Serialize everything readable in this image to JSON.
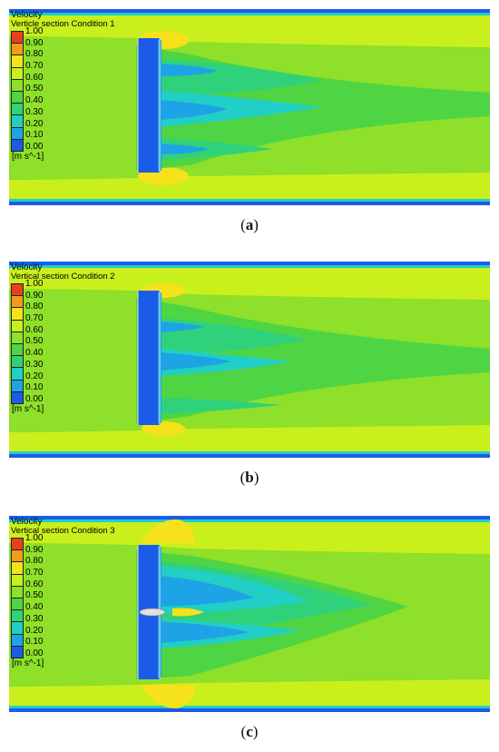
{
  "legend": {
    "title": "Velocity",
    "unit": "[m s^-1]",
    "ticks": [
      "1.00",
      "0.90",
      "0.80",
      "0.70",
      "0.60",
      "0.50",
      "0.40",
      "0.30",
      "0.20",
      "0.10",
      "0.00"
    ],
    "colors": [
      "#e8401e",
      "#f39a1e",
      "#f6e21a",
      "#c9ef1d",
      "#8ee02a",
      "#4fd443",
      "#2fd17a",
      "#21cfc6",
      "#1ea3e6",
      "#1b5be8"
    ]
  },
  "panels": [
    {
      "subtitle": "Verticle section Condition 1",
      "caption_letter": "a"
    },
    {
      "subtitle": "Vertical section Condition 2",
      "caption_letter": "b"
    },
    {
      "subtitle": "Vertical section Condition 3",
      "caption_letter": "c"
    }
  ]
}
